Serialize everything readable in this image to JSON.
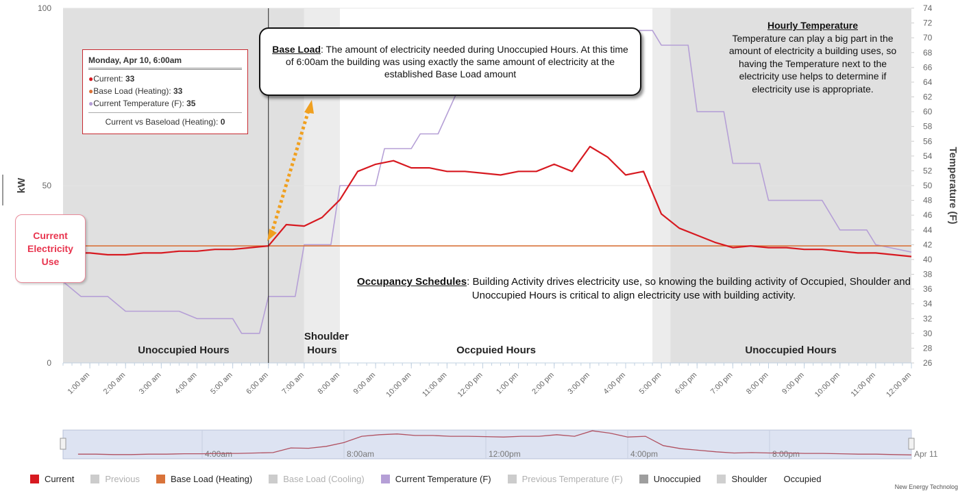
{
  "chart_data": {
    "type": "line",
    "y_label": "kW",
    "y2_label": "Temperature (F)",
    "xlim": [
      0.25,
      24
    ],
    "xticks": [
      {
        "value": 1,
        "label": "1:00 am"
      },
      {
        "value": 2,
        "label": "2:00 am"
      },
      {
        "value": 3,
        "label": "3:00 am"
      },
      {
        "value": 4,
        "label": "4:00 am"
      },
      {
        "value": 5,
        "label": "5:00 am"
      },
      {
        "value": 6,
        "label": "6:00 am"
      },
      {
        "value": 7,
        "label": "7:00 am"
      },
      {
        "value": 8,
        "label": "8:00 am"
      },
      {
        "value": 9,
        "label": "9:00 am"
      },
      {
        "value": 10,
        "label": "10:00 am"
      },
      {
        "value": 11,
        "label": "11:00 am"
      },
      {
        "value": 12,
        "label": "12:00 pm"
      },
      {
        "value": 13,
        "label": "1:00 pm"
      },
      {
        "value": 14,
        "label": "2:00 pm"
      },
      {
        "value": 15,
        "label": "3:00 pm"
      },
      {
        "value": 16,
        "label": "4:00 pm"
      },
      {
        "value": 17,
        "label": "5:00 pm"
      },
      {
        "value": 18,
        "label": "6:00 pm"
      },
      {
        "value": 19,
        "label": "7:00 pm"
      },
      {
        "value": 20,
        "label": "8:00 pm"
      },
      {
        "value": 21,
        "label": "9:00 pm"
      },
      {
        "value": 22,
        "label": "10:00 pm"
      },
      {
        "value": 23,
        "label": "11:00 pm"
      },
      {
        "value": 24,
        "label": "12:00 am"
      }
    ],
    "ylim": [
      0,
      100
    ],
    "yticks": [
      0,
      50,
      100
    ],
    "y2lim": [
      26,
      74
    ],
    "y2ticks": [
      26,
      28,
      30,
      32,
      34,
      36,
      38,
      40,
      42,
      44,
      46,
      48,
      50,
      52,
      54,
      56,
      58,
      60,
      62,
      64,
      66,
      68,
      70,
      72,
      74
    ],
    "grid": true,
    "crosshair": 6,
    "series": [
      {
        "name": "Current",
        "color": "#d71920",
        "visible": true,
        "x": [
          0.5,
          1,
          1.5,
          2,
          2.5,
          3,
          3.5,
          4,
          4.5,
          5,
          5.5,
          6,
          6.5,
          7,
          7.5,
          8,
          8.5,
          9,
          9.5,
          10,
          10.5,
          11,
          11.5,
          12,
          12.5,
          13,
          13.5,
          14,
          14.5,
          15,
          15.5,
          16,
          16.5,
          17,
          17.5,
          18,
          18.5,
          19,
          19.5,
          20,
          20.5,
          21,
          21.5,
          22,
          22.5,
          23,
          23.5,
          24
        ],
        "values": [
          31,
          31,
          30.5,
          30.5,
          31,
          31,
          31.5,
          31.5,
          32,
          32,
          32.5,
          33,
          39,
          38.6,
          41,
          46,
          54,
          56,
          57,
          55,
          55,
          54,
          54,
          53.5,
          53,
          54,
          54,
          56,
          54,
          61,
          58,
          53,
          54,
          42,
          38,
          36,
          34,
          32.5,
          33,
          32.5,
          32.5,
          32,
          32,
          31.5,
          31,
          31,
          30.5,
          30
        ]
      },
      {
        "name": "Previous",
        "color": "#cccccc",
        "visible": false
      },
      {
        "name": "Base Load (Heating)",
        "color": "#d9733a",
        "visible": true,
        "x": [
          0.25,
          24
        ],
        "values": [
          33,
          33
        ]
      },
      {
        "name": "Base Load (Cooling)",
        "color": "#cccccc",
        "visible": false
      },
      {
        "name": "Current Temperature (F)",
        "color": "#b59fd6",
        "visible": true,
        "axis": "y2",
        "x": [
          0.25,
          0.75,
          1.5,
          2,
          3.5,
          4,
          5,
          5.25,
          5.75,
          6,
          6.75,
          7,
          7.75,
          8,
          9,
          9.25,
          10,
          10.25,
          10.75,
          11.5,
          12,
          13,
          14,
          14.75,
          16.75,
          17,
          17.75,
          18,
          18.75,
          19,
          19.75,
          20,
          21.5,
          22,
          22.75,
          23,
          24
        ],
        "values": [
          37,
          35,
          35,
          33,
          33,
          32,
          32,
          30,
          30,
          35,
          35,
          42,
          42,
          50,
          50,
          55,
          55,
          57,
          57,
          65,
          68,
          69,
          70,
          71,
          71,
          69,
          69,
          60,
          60,
          53,
          53,
          48,
          48,
          44,
          44,
          42,
          41
        ]
      },
      {
        "name": "Previous Temperature (F)",
        "color": "#cccccc",
        "visible": false
      }
    ],
    "zones": [
      {
        "name": "Unoccupied",
        "color": "#9e9e9e",
        "fill": "#e0e0e0",
        "ranges": [
          [
            0.25,
            7
          ],
          [
            17.25,
            24
          ]
        ],
        "labels": [
          "Unoccupied Hours",
          "Unoccupied Hours"
        ]
      },
      {
        "name": "Shoulder",
        "color": "#cfcfcf",
        "fill": "#ececec",
        "ranges": [
          [
            7,
            8
          ],
          [
            16.75,
            17.25
          ]
        ],
        "labels": [
          "Shoulder Hours",
          null
        ]
      },
      {
        "name": "Occupied",
        "color": "#ffffff",
        "fill": "#ffffff",
        "ranges": [
          [
            8,
            16.75
          ]
        ],
        "labels": [
          "Occpuied Hours"
        ]
      }
    ],
    "tooltip": {
      "title": "Monday, Apr 10, 6:00am",
      "rows": [
        {
          "label": "Current:",
          "value": 33,
          "color": "#d71920"
        },
        {
          "label": "Base Load (Heating):",
          "value": 33,
          "color": "#d9733a"
        },
        {
          "label": "Current Temperature (F):",
          "value": 35,
          "color": "#b59fd6"
        }
      ],
      "summary": {
        "label": "Current vs Baseload (Heating):",
        "value": 0
      }
    },
    "annotations": {
      "base_load": {
        "term": "Base Load",
        "text": ": The amount of electricity needed during Unoccupied Hours. At this time of 6:00am the building was using exactly the same amount of electricity at the established Base Load amount"
      },
      "temperature": {
        "term": "Hourly Temperature",
        "text": "Temperature can play a big part in the amount of electricity a building uses, so having the Temperature next to the electricity use helps to determine if electricity use is appropriate."
      },
      "occupancy": {
        "term": "Occupancy Schedules",
        "text": ": Building Activity drives electricity use, so knowing the building activity of Occupied, Shoulder and Unoccupied Hours is critical to align electricity use with building activity."
      },
      "current": "Current Electricity Use"
    },
    "navigator": {
      "xlim": [
        0,
        24
      ],
      "ylim": [
        25,
        62
      ],
      "xticks": [
        {
          "value": 4,
          "label": "4:00am"
        },
        {
          "value": 8,
          "label": "8:00am"
        },
        {
          "value": 12,
          "label": "12:00pm"
        },
        {
          "value": 16,
          "label": "4:00pm"
        },
        {
          "value": 20,
          "label": "8:00pm"
        },
        {
          "value": 24,
          "label": "Apr 11"
        }
      ]
    },
    "footer": "New Energy Technolog"
  }
}
